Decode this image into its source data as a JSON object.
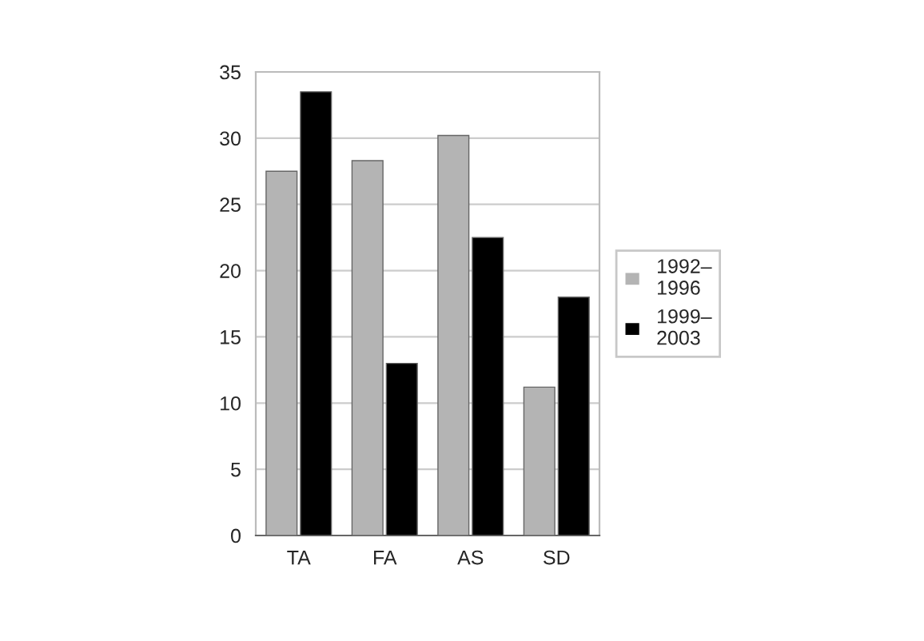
{
  "chart_data": {
    "type": "bar",
    "categories": [
      "TA",
      "FA",
      "AS",
      "SD"
    ],
    "series": [
      {
        "name": "1992–\n1996",
        "color": "#b4b4b4",
        "values": [
          27.5,
          28.3,
          30.2,
          11.2
        ]
      },
      {
        "name": "1999–\n2003",
        "color": "#000000",
        "values": [
          33.5,
          13,
          22.5,
          18
        ]
      }
    ],
    "ylim": [
      0,
      35
    ],
    "yticks": [
      0,
      5,
      10,
      15,
      20,
      25,
      30,
      35
    ],
    "grid": "y",
    "legend": "right"
  }
}
